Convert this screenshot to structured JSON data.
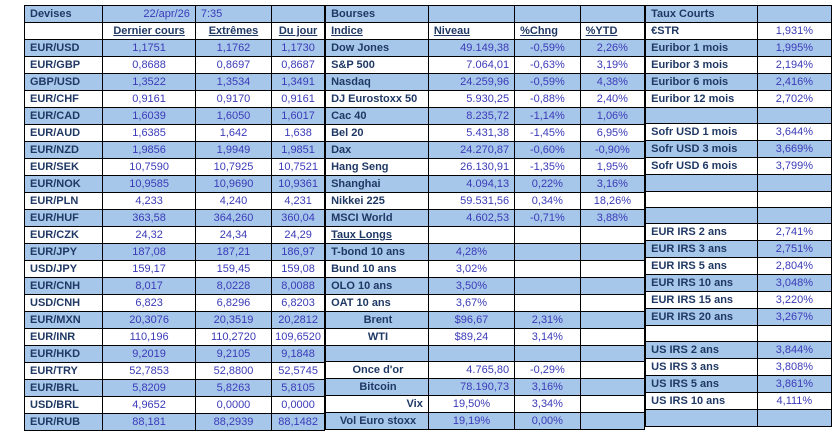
{
  "meta": {
    "date": "22/apr/26",
    "time": "7:35"
  },
  "colors": {
    "shaded_row": "#a7c7ea",
    "label_text": "#1f3864",
    "value_text": "#3a3ab8",
    "border": "#000000",
    "background": "#ffffff"
  },
  "devises": {
    "title": "Devises",
    "columns": {
      "dernier": "Dernier cours",
      "extremes": "Extrêmes",
      "jour": "Du jour"
    },
    "rows": [
      {
        "pair": "EUR/USD",
        "dernier": "1,1751",
        "extremes": "1,1762",
        "jour": "1,1730"
      },
      {
        "pair": "EUR/GBP",
        "dernier": "0,8688",
        "extremes": "0,8697",
        "jour": "0,8687"
      },
      {
        "pair": "GBP/USD",
        "dernier": "1,3522",
        "extremes": "1,3534",
        "jour": "1,3491"
      },
      {
        "pair": "EUR/CHF",
        "dernier": "0,9161",
        "extremes": "0,9170",
        "jour": "0,9161"
      },
      {
        "pair": "EUR/CAD",
        "dernier": "1,6039",
        "extremes": "1,6050",
        "jour": "1,6017"
      },
      {
        "pair": "EUR/AUD",
        "dernier": "1,6385",
        "extremes": "1,642",
        "jour": "1,638"
      },
      {
        "pair": "EUR/NZD",
        "dernier": "1,9856",
        "extremes": "1,9949",
        "jour": "1,9851"
      },
      {
        "pair": "EUR/SEK",
        "dernier": "10,7590",
        "extremes": "10,7925",
        "jour": "10,7521"
      },
      {
        "pair": "EUR/NOK",
        "dernier": "10,9585",
        "extremes": "10,9690",
        "jour": "10,9361"
      },
      {
        "pair": "EUR/PLN",
        "dernier": "4,233",
        "extremes": "4,240",
        "jour": "4,231"
      },
      {
        "pair": "EUR/HUF",
        "dernier": "363,58",
        "extremes": "364,260",
        "jour": "360,04"
      },
      {
        "pair": "EUR/CZK",
        "dernier": "24,32",
        "extremes": "24,34",
        "jour": "24,29"
      },
      {
        "pair": "EUR/JPY",
        "dernier": "187,08",
        "extremes": "187,21",
        "jour": "186,97"
      },
      {
        "pair": "USD/JPY",
        "dernier": "159,17",
        "extremes": "159,45",
        "jour": "159,08"
      },
      {
        "pair": "EUR/CNH",
        "dernier": "8,017",
        "extremes": "8,0228",
        "jour": "8,0088"
      },
      {
        "pair": "USD/CNH",
        "dernier": "6,823",
        "extremes": "6,8296",
        "jour": "6,8203"
      },
      {
        "pair": "EUR/MXN",
        "dernier": "20,3076",
        "extremes": "20,3519",
        "jour": "20,2812"
      },
      {
        "pair": "EUR/INR",
        "dernier": "110,196",
        "extremes": "110,2720",
        "jour": "109,6520"
      },
      {
        "pair": "EUR/HKD",
        "dernier": "9,2019",
        "extremes": "9,2105",
        "jour": "9,1848"
      },
      {
        "pair": "EUR/TRY",
        "dernier": "52,7853",
        "extremes": "52,8800",
        "jour": "52,5745"
      },
      {
        "pair": "EUR/BRL",
        "dernier": "5,8209",
        "extremes": "5,8263",
        "jour": "5,8105"
      },
      {
        "pair": "USD/BRL",
        "dernier": "4,9652",
        "extremes": "0,0000",
        "jour": "0,0000"
      },
      {
        "pair": "EUR/RUB",
        "dernier": "88,181",
        "extremes": "88,2939",
        "jour": "88,1482"
      }
    ]
  },
  "bourses": {
    "title": "Bourses",
    "columns": {
      "indice": "Indice",
      "niveau": "Niveau",
      "chng": "%Chng",
      "ytd": "%YTD"
    },
    "indices": [
      {
        "name": "Dow Jones",
        "niveau": "49.149,38",
        "chng": "-0,59%",
        "ytd": "2,26%"
      },
      {
        "name": "S&P 500",
        "niveau": "7.064,01",
        "chng": "-0,63%",
        "ytd": "3,19%"
      },
      {
        "name": "Nasdaq",
        "niveau": "24.259,96",
        "chng": "-0,59%",
        "ytd": "4,38%"
      },
      {
        "name": "DJ Eurostoxx 50",
        "niveau": "5.930,25",
        "chng": "-0,88%",
        "ytd": "2,40%"
      },
      {
        "name": "Cac 40",
        "niveau": "8.235,72",
        "chng": "-1,14%",
        "ytd": "1,06%"
      },
      {
        "name": "Bel 20",
        "niveau": "5.431,38",
        "chng": "-1,45%",
        "ytd": "6,95%"
      },
      {
        "name": "Dax",
        "niveau": "24.270,87",
        "chng": "-0,60%",
        "ytd": "-0,90%"
      },
      {
        "name": "Hang Seng",
        "niveau": "26.130,91",
        "chng": "-1,35%",
        "ytd": "1,95%"
      },
      {
        "name": "Shanghai",
        "niveau": "4.094,13",
        "chng": "0,22%",
        "ytd": "3,16%"
      },
      {
        "name": "Nikkei 225",
        "niveau": "59.531,56",
        "chng": "0,34%",
        "ytd": "18,26%"
      },
      {
        "name": "MSCI World",
        "niveau": "4.602,53",
        "chng": "-0,71%",
        "ytd": "3,88%"
      }
    ],
    "taux_longs_title": "Taux Longs",
    "taux_longs": [
      {
        "name": "T-bond 10 ans",
        "taux": "4,28%"
      },
      {
        "name": "Bund 10 ans",
        "taux": "3,02%"
      },
      {
        "name": "OLO 10 ans",
        "taux": "3,50%"
      },
      {
        "name": "OAT 10 ans",
        "taux": "3,67%"
      }
    ],
    "energy": [
      {
        "name": "Brent",
        "prix": "$96,67",
        "chng": "2,31%"
      },
      {
        "name": "WTI",
        "prix": "$89,24",
        "chng": "3,14%"
      }
    ],
    "autres": [
      {
        "name": "Once d'or",
        "niveau": "4.765,80",
        "chng": "-0,29%"
      },
      {
        "name": "Bitcoin",
        "niveau": "78.190,73",
        "chng": "3,16%"
      },
      {
        "name": "Vix",
        "niveau": "19,50%",
        "chng": "3,34%"
      },
      {
        "name": "Vol Euro stoxx",
        "niveau": "19,19%",
        "chng": "0,00%"
      }
    ]
  },
  "taux_courts": {
    "title": "Taux Courts",
    "rows": [
      {
        "label": "€STR",
        "value": "1,931%"
      },
      {
        "label": "Euribor 1 mois",
        "value": "1,995%"
      },
      {
        "label": "Euribor 3 mois",
        "value": "2,194%"
      },
      {
        "label": "Euribor 6 mois",
        "value": "2,416%"
      },
      {
        "label": "Euribor 12 mois",
        "value": "2,702%"
      },
      {
        "label": "Sofr USD 1 mois",
        "value": "3,644%"
      },
      {
        "label": "Sofr USD 3 mois",
        "value": "3,669%"
      },
      {
        "label": "Sofr USD 6 mois",
        "value": "3,799%"
      },
      {
        "label": "EUR IRS 2 ans",
        "value": "2,741%"
      },
      {
        "label": "EUR IRS 3 ans",
        "value": "2,751%"
      },
      {
        "label": "EUR IRS 5 ans",
        "value": "2,804%"
      },
      {
        "label": "EUR IRS 10 ans",
        "value": "3,048%"
      },
      {
        "label": "EUR IRS 15 ans",
        "value": "3,220%"
      },
      {
        "label": "EUR IRS 20 ans",
        "value": "3,267%"
      },
      {
        "label": "US IRS 2 ans",
        "value": "3,844%"
      },
      {
        "label": "US IRS 3 ans",
        "value": "3,808%"
      },
      {
        "label": "US IRS 5 ans",
        "value": "3,861%"
      },
      {
        "label": "US IRS 10 ans",
        "value": "4,111%"
      }
    ]
  }
}
